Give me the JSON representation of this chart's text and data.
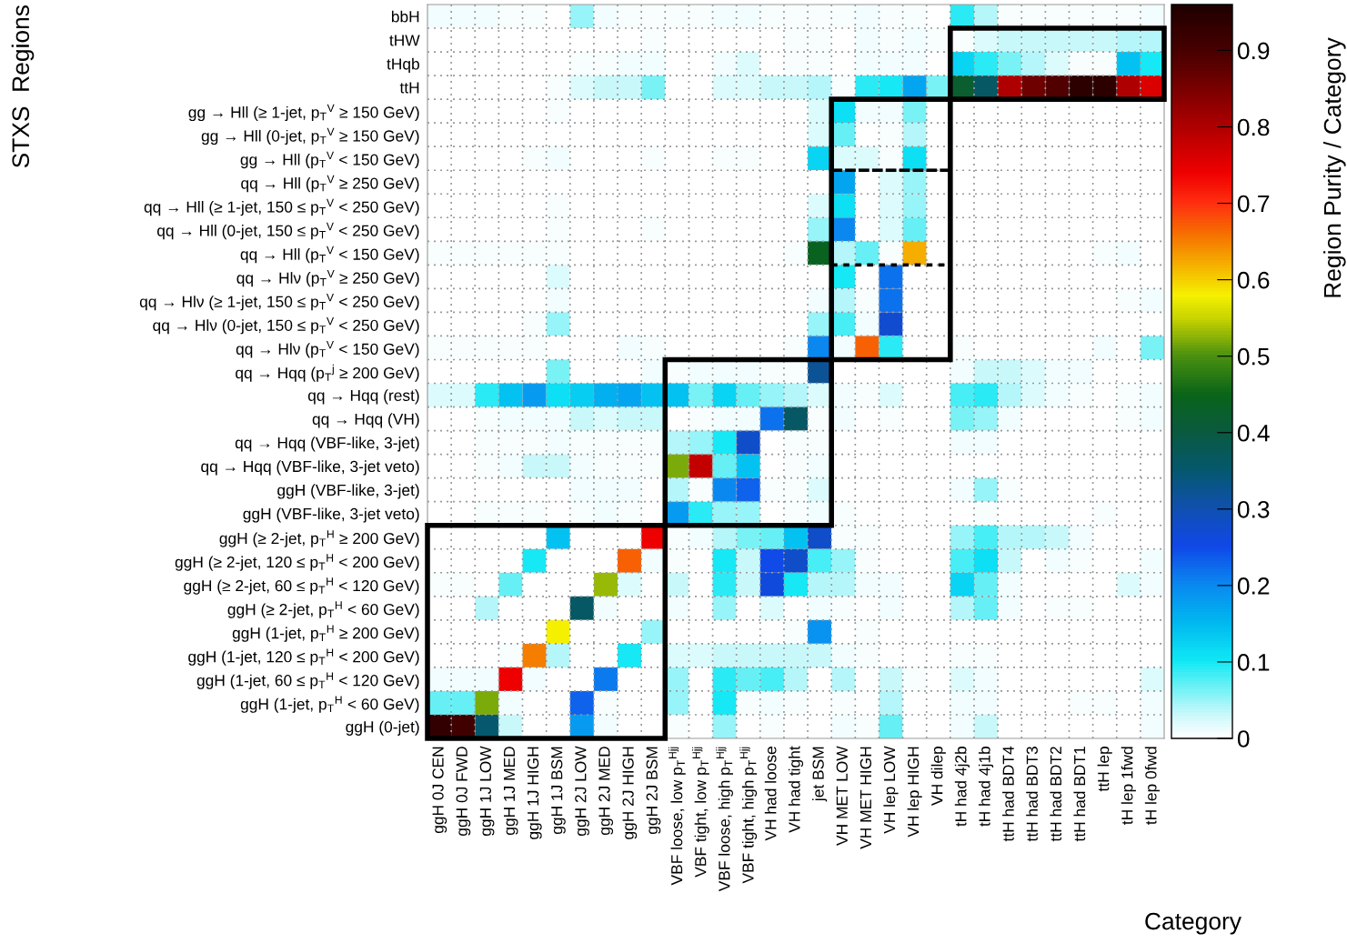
{
  "chart_data": {
    "type": "heatmap",
    "xlabel": "Category",
    "annotations": [
      "STXS  Regions"
    ],
    "clabel": "Region Purity / Category",
    "categories": [
      "ggH 0J CEN",
      "ggH 0J FWD",
      "ggH 1J LOW",
      "ggH 1J MED",
      "ggH 1J HIGH",
      "ggH 1J BSM",
      "ggH 2J LOW",
      "ggH 2J MED",
      "ggH 2J HIGH",
      "ggH 2J BSM",
      "VBF loose, low p$_{T}$$^{Hjj}$",
      "VBF tight, low p$_{T}$$^{Hjj}$",
      "VBF loose, high p$_{T}$$^{Hjj}$",
      "VBF tight, high p$_{T}$$^{Hjj}$",
      "VH had loose",
      "VH had tight",
      "jet BSM",
      "VH MET LOW",
      "VH MET HIGH",
      "VH lep LOW",
      "VH lep HIGH",
      "VH dilep",
      "tH had 4j2b",
      "tH had 4j1b",
      "ttH had BDT4",
      "ttH had BDT3",
      "ttH had BDT2",
      "ttH had BDT1",
      "ttH lep",
      "tH lep 1fwd",
      "tH lep 0fwd"
    ],
    "y_categories": [
      "bbH",
      "tHW",
      "tHqb",
      "ttH",
      "gg → Hll (≥ 1-jet, p$_{T}$$^{V}$ ≥ 150 GeV)",
      "gg → Hll (0-jet, p$_{T}$$^{V}$ ≥ 150 GeV)",
      "gg → Hll (p$_{T}$$^{V}$ < 150 GeV)",
      "qq → Hll (p$_{T}$$^{V}$ ≥ 250 GeV)",
      "qq → Hll (≥ 1-jet, 150 ≤ p$_{T}$$^{V}$ < 250 GeV)",
      "qq → Hll (0-jet, 150 ≤ p$_{T}$$^{V}$ < 250 GeV)",
      "qq → Hll (p$_{T}$$^{V}$ < 150 GeV)",
      "qq → Hlν (p$_{T}$$^{V}$ ≥ 250 GeV)",
      "qq → Hlν (≥ 1-jet, 150 ≤ p$_{T}$$^{V}$ < 250 GeV)",
      "qq → Hlν (0-jet, 150 ≤ p$_{T}$$^{V}$ < 250 GeV)",
      "qq → Hlν (p$_{T}$$^{V}$ < 150 GeV)",
      "qq → Hqq (p$_{T}$$^{j}$ ≥ 200 GeV)",
      "qq → Hqq (rest)",
      "qq → Hqq (VH)",
      "qq → Hqq (VBF-like, 3-jet)",
      "qq → Hqq (VBF-like, 3-jet veto)",
      "ggH (VBF-like, 3-jet)",
      "ggH (VBF-like, 3-jet veto)",
      "ggH (≥ 2-jet, p$_{T}$$^{H}$ ≥ 200 GeV)",
      "ggH (≥ 2-jet, 120 ≤ p$_{T}$$^{H}$ < 200 GeV)",
      "ggH (≥ 2-jet, 60 ≤ p$_{T}$$^{H}$ < 120 GeV)",
      "ggH (≥ 2-jet, p$_{T}$$^{H}$ < 60 GeV)",
      "ggH (1-jet, p$_{T}$$^{H}$ ≥ 200 GeV)",
      "ggH (1-jet, 120 ≤ p$_{T}$$^{H}$ < 200 GeV)",
      "ggH (1-jet, 60 ≤ p$_{T}$$^{H}$ < 120 GeV)",
      "ggH (1-jet, p$_{T}$$^{H}$ < 60 GeV)",
      "ggH (0-jet)"
    ],
    "cells": [
      [
        0.01,
        0.01,
        0.01,
        0.005,
        0.005,
        0,
        0.05,
        0.01,
        0.005,
        0.005,
        0.005,
        0.005,
        0.01,
        0.01,
        0.005,
        0.005,
        0.005,
        0.005,
        0.01,
        0.005,
        0.005,
        0,
        0.09,
        0.04,
        0.005,
        0.005,
        0.005,
        0.005,
        0.005,
        0.005,
        0.01
      ],
      [
        0,
        0,
        0,
        0,
        0,
        0,
        0,
        0,
        0,
        0.005,
        0,
        0,
        0,
        0,
        0,
        0.005,
        0.005,
        0,
        0.01,
        0.005,
        0.01,
        0.005,
        0.005,
        0.02,
        0.03,
        0.03,
        0.03,
        0.03,
        0.03,
        0.04,
        0.04
      ],
      [
        0,
        0,
        0,
        0,
        0,
        0,
        0.005,
        0.005,
        0.01,
        0.01,
        0,
        0,
        0.01,
        0.02,
        0,
        0.005,
        0.005,
        0,
        0.01,
        0.01,
        0.01,
        0,
        0.12,
        0.09,
        0.06,
        0.04,
        0.02,
        0.005,
        0.005,
        0.14,
        0.1
      ],
      [
        0,
        0,
        0,
        0,
        0,
        0.005,
        0.02,
        0.03,
        0.03,
        0.06,
        0,
        0,
        0.02,
        0.02,
        0.03,
        0.03,
        0.04,
        0.005,
        0.09,
        0.1,
        0.17,
        0.06,
        0.42,
        0.36,
        0.8,
        0.86,
        0.89,
        0.94,
        0.94,
        0.8,
        0.76
      ],
      [
        0,
        0,
        0,
        0,
        0,
        0.005,
        0,
        0,
        0,
        0,
        0,
        0,
        0,
        0,
        0,
        0,
        0.02,
        0.11,
        0.01,
        0.01,
        0.06,
        0,
        0,
        0,
        0,
        0,
        0,
        0,
        0,
        0,
        0
      ],
      [
        0,
        0,
        0,
        0,
        0,
        0,
        0,
        0,
        0,
        0,
        0,
        0,
        0,
        0,
        0,
        0,
        0.02,
        0.07,
        0,
        0.005,
        0.04,
        0,
        0,
        0,
        0,
        0,
        0,
        0,
        0,
        0,
        0
      ],
      [
        0,
        0,
        0,
        0,
        0.005,
        0.01,
        0,
        0,
        0,
        0.005,
        0,
        0,
        0.005,
        0.005,
        0,
        0,
        0.12,
        0.02,
        0.02,
        0.005,
        0.11,
        0,
        0,
        0,
        0,
        0,
        0,
        0,
        0,
        0,
        0
      ],
      [
        0,
        0,
        0,
        0,
        0,
        0,
        0,
        0,
        0,
        0,
        0,
        0,
        0,
        0,
        0,
        0,
        0,
        0.17,
        0,
        0.02,
        0.05,
        0,
        0,
        0,
        0,
        0,
        0,
        0,
        0,
        0,
        0
      ],
      [
        0,
        0,
        0,
        0,
        0,
        0.005,
        0,
        0,
        0,
        0,
        0,
        0,
        0,
        0,
        0,
        0,
        0.02,
        0.11,
        0,
        0.02,
        0.05,
        0,
        0,
        0,
        0,
        0,
        0,
        0,
        0,
        0,
        0
      ],
      [
        0,
        0,
        0,
        0,
        0,
        0.005,
        0,
        0,
        0,
        0.005,
        0,
        0,
        0,
        0,
        0,
        0,
        0.05,
        0.2,
        0,
        0.02,
        0.07,
        0,
        0,
        0,
        0,
        0,
        0,
        0,
        0,
        0,
        0
      ],
      [
        0.005,
        0.005,
        0.005,
        0.005,
        0.005,
        0.005,
        0,
        0,
        0,
        0,
        0,
        0,
        0,
        0,
        0,
        0.005,
        0.44,
        0.04,
        0.07,
        0.005,
        0.62,
        0,
        0,
        0,
        0,
        0,
        0,
        0,
        0.005,
        0.01,
        0
      ],
      [
        0,
        0,
        0,
        0,
        0,
        0.02,
        0,
        0,
        0,
        0,
        0,
        0,
        0,
        0,
        0,
        0,
        0,
        0.1,
        0,
        0.22,
        0,
        0,
        0,
        0,
        0,
        0,
        0,
        0,
        0,
        0,
        0
      ],
      [
        0,
        0,
        0,
        0,
        0,
        0.01,
        0,
        0,
        0,
        0,
        0,
        0,
        0,
        0,
        0,
        0,
        0.01,
        0.04,
        0.005,
        0.22,
        0,
        0,
        0,
        0,
        0,
        0,
        0,
        0,
        0,
        0.005,
        0.01
      ],
      [
        0,
        0,
        0,
        0,
        0.005,
        0.05,
        0,
        0,
        0,
        0,
        0,
        0,
        0,
        0,
        0,
        0,
        0.05,
        0.08,
        0.01,
        0.27,
        0,
        0,
        0,
        0,
        0,
        0,
        0,
        0,
        0,
        0,
        0
      ],
      [
        0.005,
        0.005,
        0.005,
        0.005,
        0.005,
        0,
        0,
        0,
        0.01,
        0.005,
        0,
        0,
        0,
        0,
        0,
        0.005,
        0.2,
        0.01,
        0.67,
        0.09,
        0,
        0,
        0.005,
        0,
        0,
        0,
        0,
        0,
        0.01,
        0,
        0.06
      ],
      [
        0,
        0,
        0,
        0,
        0,
        0.06,
        0,
        0,
        0,
        0.01,
        0.005,
        0.01,
        0.01,
        0.01,
        0.005,
        0.005,
        0.32,
        0,
        0,
        0,
        0,
        0,
        0.01,
        0.03,
        0.03,
        0.02,
        0.01,
        0.01,
        0,
        0,
        0
      ],
      [
        0.02,
        0.02,
        0.09,
        0.14,
        0.18,
        0.11,
        0.13,
        0.16,
        0.17,
        0.14,
        0.14,
        0.06,
        0.12,
        0.07,
        0.05,
        0.04,
        0.02,
        0.01,
        0.005,
        0.02,
        0,
        0,
        0.08,
        0.09,
        0.04,
        0.02,
        0.01,
        0.005,
        0,
        0.005,
        0.01
      ],
      [
        0,
        0,
        0.005,
        0.01,
        0.01,
        0.01,
        0.03,
        0.02,
        0.03,
        0.03,
        0,
        0.005,
        0.01,
        0.01,
        0.22,
        0.36,
        0.005,
        0.01,
        0,
        0.005,
        0,
        0,
        0.06,
        0.05,
        0.01,
        0,
        0,
        0,
        0,
        0.005,
        0.01
      ],
      [
        0,
        0,
        0.005,
        0.005,
        0.005,
        0.01,
        0.005,
        0.005,
        0.005,
        0.005,
        0.04,
        0.05,
        0.1,
        0.28,
        0,
        0.005,
        0.005,
        0,
        0,
        0,
        0,
        0,
        0.01,
        0.01,
        0,
        0,
        0,
        0,
        0,
        0,
        0
      ],
      [
        0,
        0,
        0.005,
        0.01,
        0.03,
        0.03,
        0.01,
        0.005,
        0.005,
        0.005,
        0.52,
        0.78,
        0.07,
        0.14,
        0,
        0.005,
        0.01,
        0,
        0,
        0,
        0,
        0,
        0,
        0,
        0,
        0,
        0,
        0,
        0,
        0,
        0
      ],
      [
        0,
        0,
        0,
        0,
        0,
        0,
        0.01,
        0.01,
        0.01,
        0,
        0.04,
        0.005,
        0.2,
        0.23,
        0.005,
        0.005,
        0.02,
        0,
        0,
        0,
        0,
        0,
        0.01,
        0.05,
        0.005,
        0,
        0,
        0,
        0,
        0,
        0
      ],
      [
        0,
        0,
        0.005,
        0.005,
        0.005,
        0,
        0.005,
        0.01,
        0.005,
        0,
        0.18,
        0.09,
        0.05,
        0.05,
        0,
        0.005,
        0.01,
        0.005,
        0,
        0,
        0,
        0,
        0,
        0.005,
        0,
        0,
        0,
        0,
        0.005,
        0,
        0
      ],
      [
        0,
        0,
        0,
        0,
        0,
        0.14,
        0,
        0,
        0,
        0.74,
        0.005,
        0.01,
        0.04,
        0.06,
        0.07,
        0.14,
        0.28,
        0.005,
        0.005,
        0,
        0,
        0,
        0.05,
        0.08,
        0.04,
        0.04,
        0.03,
        0.01,
        0,
        0,
        0
      ],
      [
        0,
        0,
        0,
        0,
        0.1,
        0,
        0,
        0,
        0.67,
        0.01,
        0.005,
        0,
        0.1,
        0.03,
        0.25,
        0.28,
        0.08,
        0.05,
        0.005,
        0,
        0,
        0,
        0.08,
        0.11,
        0.03,
        0,
        0.01,
        0.005,
        0,
        0,
        0.01
      ],
      [
        0.005,
        0.005,
        0,
        0.07,
        0,
        0,
        0,
        0.53,
        0.02,
        0,
        0.03,
        0,
        0.09,
        0.03,
        0.26,
        0.1,
        0.04,
        0.04,
        0.01,
        0.01,
        0,
        0,
        0.12,
        0.07,
        0.01,
        0,
        0,
        0,
        0,
        0.02,
        0.01
      ],
      [
        0,
        0,
        0.04,
        0,
        0,
        0,
        0.36,
        0.01,
        0,
        0,
        0.01,
        0,
        0.05,
        0,
        0.02,
        0,
        0.01,
        0.005,
        0,
        0.01,
        0,
        0,
        0.04,
        0.07,
        0.01,
        0,
        0.005,
        0.005,
        0,
        0,
        0
      ],
      [
        0,
        0,
        0,
        0,
        0,
        0.58,
        0,
        0,
        0,
        0.05,
        0,
        0,
        0,
        0,
        0,
        0.005,
        0.19,
        0,
        0.005,
        0,
        0,
        0,
        0,
        0,
        0,
        0,
        0,
        0,
        0,
        0,
        0
      ],
      [
        0,
        0,
        0,
        0.005,
        0.65,
        0.04,
        0,
        0,
        0.1,
        0,
        0.02,
        0.02,
        0.03,
        0.03,
        0.03,
        0.03,
        0.03,
        0.01,
        0.005,
        0,
        0,
        0,
        0.005,
        0.005,
        0,
        0,
        0,
        0,
        0,
        0,
        0
      ],
      [
        0.01,
        0.01,
        0.01,
        0.74,
        0.01,
        0,
        0,
        0.21,
        0,
        0,
        0.05,
        0,
        0.09,
        0.07,
        0.08,
        0.04,
        0,
        0.04,
        0,
        0.03,
        0.005,
        0,
        0.02,
        0.01,
        0,
        0,
        0,
        0,
        0,
        0,
        0.02
      ],
      [
        0.07,
        0.07,
        0.52,
        0.01,
        0,
        0,
        0.23,
        0.005,
        0,
        0,
        0.05,
        0,
        0.1,
        0.005,
        0.01,
        0.005,
        0,
        0.005,
        0,
        0.04,
        0,
        0,
        0.01,
        0.01,
        0,
        0,
        0,
        0.005,
        0.005,
        0,
        0.01
      ],
      [
        0.93,
        0.91,
        0.35,
        0.03,
        0,
        0,
        0.18,
        0.01,
        0,
        0,
        0.005,
        0,
        0.05,
        0,
        0.005,
        0,
        0,
        0.01,
        0.005,
        0.07,
        0,
        0,
        0.01,
        0.03,
        0,
        0,
        0,
        0,
        0,
        0,
        0.01
      ]
    ],
    "clim": [
      0,
      0.96
    ],
    "cticks": [
      0,
      0.1,
      0.2,
      0.3,
      0.4,
      0.5,
      0.6,
      0.7,
      0.8,
      0.9
    ],
    "grid": true
  }
}
